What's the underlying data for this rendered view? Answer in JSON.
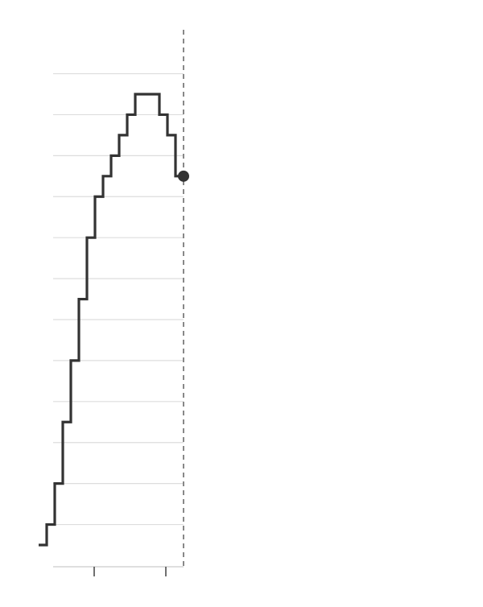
{
  "chart_data": {
    "type": "line",
    "step": true,
    "title": "",
    "xlabel": "",
    "ylabel": "",
    "x": [
      0,
      1,
      2,
      3,
      4,
      5,
      6,
      7,
      8,
      9,
      10,
      11,
      12,
      13,
      14,
      15,
      16,
      17,
      18
    ],
    "values": [
      0,
      0.5,
      1.5,
      3,
      4.5,
      6,
      7.5,
      8.5,
      9,
      9.5,
      10,
      10.5,
      11,
      11,
      11,
      10.5,
      10,
      9,
      9
    ],
    "ylim": [
      -0.5,
      11.5
    ],
    "grid": true,
    "end_marker": true,
    "vertical_reference_line": true,
    "x_ticks": 2,
    "colors": {
      "line": "#333333",
      "grid": "#dddddd",
      "axis": "#cccccc",
      "tick": "#333333",
      "reference": "#888888",
      "marker": "#333333"
    }
  }
}
